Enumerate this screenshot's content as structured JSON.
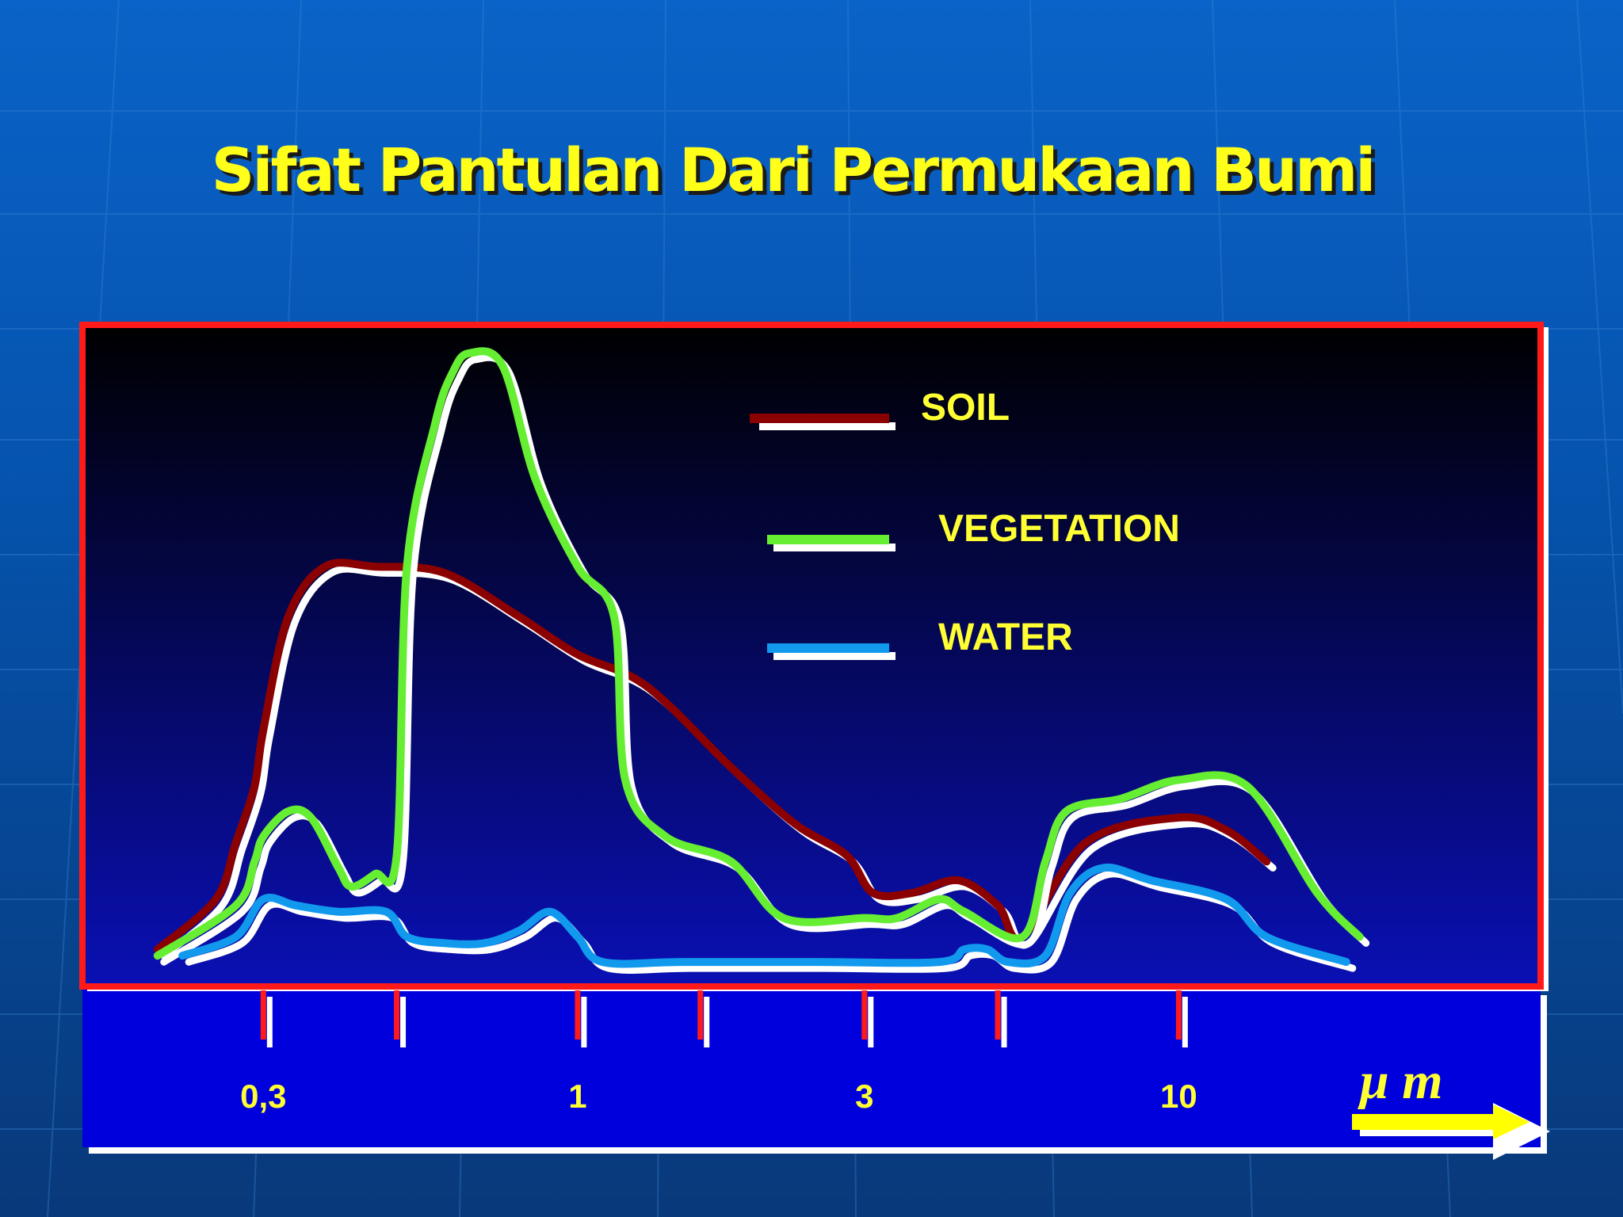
{
  "slide": {
    "title": "Sifat Pantulan Dari Permukaan Bumi"
  },
  "colors": {
    "background": "#0553ad",
    "title": "#ffff1a",
    "frame": "#ff1a1a",
    "axis_band": "#0000dd",
    "soil": "#8b0000",
    "vegetation": "#66ee33",
    "water": "#1199ee",
    "shadow_line": "#ffffff",
    "label_text": "#ffff33",
    "unit_arrow": "#ffff00"
  },
  "chart_data": {
    "type": "line",
    "title": "",
    "xlabel": "",
    "ylabel": "",
    "x_scale": "log",
    "x_unit": "μ m",
    "xlim": [
      0.15,
      40
    ],
    "ylim": [
      0,
      100
    ],
    "grid": false,
    "legend_position": "top-center",
    "x_ticks": [
      {
        "value": 0.3,
        "label": "0,3"
      },
      {
        "value": 0.5,
        "label": ""
      },
      {
        "value": 1,
        "label": "1"
      },
      {
        "value": 1.6,
        "label": ""
      },
      {
        "value": 3,
        "label": "3"
      },
      {
        "value": 5,
        "label": ""
      },
      {
        "value": 10,
        "label": "10"
      }
    ],
    "series": [
      {
        "name": "SOIL",
        "color": "#8b0000",
        "x": [
          0.2,
          0.25,
          0.27,
          0.29,
          0.3,
          0.33,
          0.38,
          0.46,
          0.6,
          0.8,
          1.0,
          1.3,
          1.8,
          2.3,
          2.8,
          3.1,
          3.6,
          4.3,
          5.0,
          5.5,
          7.0,
          10.0,
          12.0,
          14.0
        ],
        "y": [
          3,
          11,
          20,
          29,
          38,
          56,
          64,
          64,
          63,
          56,
          50,
          45,
          32,
          23,
          18,
          12,
          12,
          14,
          10,
          5,
          20,
          24,
          22,
          17
        ]
      },
      {
        "name": "VEGETATION",
        "color": "#66ee33",
        "x": [
          0.2,
          0.27,
          0.29,
          0.3,
          0.33,
          0.36,
          0.4,
          0.42,
          0.46,
          0.5,
          0.52,
          0.58,
          0.62,
          0.66,
          0.75,
          0.85,
          1.0,
          1.15,
          1.2,
          1.4,
          1.8,
          2.2,
          3.0,
          3.4,
          4.0,
          4.4,
          5.5,
          6.0,
          6.5,
          8.0,
          10.0,
          13.0,
          17.0,
          20.0
        ],
        "y": [
          2,
          10,
          17,
          21,
          25,
          24,
          16,
          13,
          15,
          18,
          64,
          87,
          95,
          98,
          96,
          78,
          64,
          56,
          30,
          21,
          17,
          8,
          8,
          8,
          11,
          9,
          5,
          17,
          25,
          27,
          30,
          29,
          12,
          5
        ]
      },
      {
        "name": "WATER",
        "color": "#1199ee",
        "x": [
          0.22,
          0.27,
          0.3,
          0.34,
          0.4,
          0.48,
          0.52,
          0.6,
          0.7,
          0.8,
          0.9,
          1.0,
          1.1,
          1.5,
          2.5,
          4.0,
          4.4,
          4.8,
          5.2,
          6.0,
          6.6,
          7.5,
          9.0,
          12.0,
          14.0,
          19.0
        ],
        "y": [
          2,
          5,
          11,
          10,
          9,
          9,
          5,
          4,
          4,
          6,
          9,
          5,
          1,
          1,
          1,
          1,
          3,
          3,
          1,
          2,
          12,
          16,
          14,
          11,
          5,
          1
        ]
      }
    ]
  },
  "axis": {
    "unit_label": "μ m"
  }
}
